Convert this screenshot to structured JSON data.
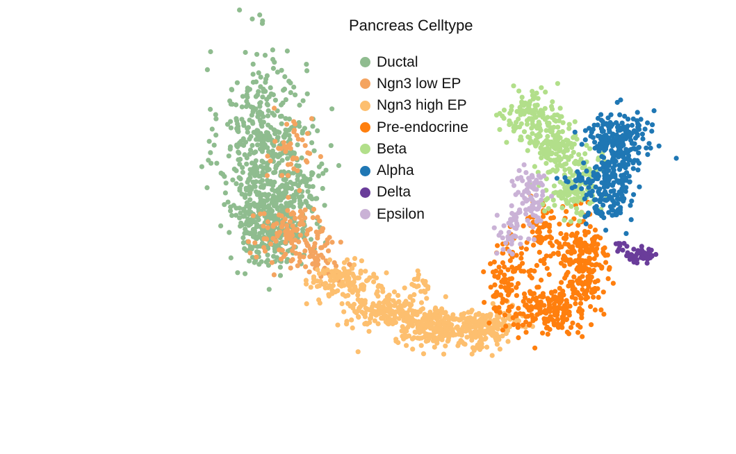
{
  "chart_data": {
    "type": "scatter",
    "title": "Pancreas Celltype",
    "xlabel": "",
    "ylabel": "",
    "axes_visible": false,
    "grid": false,
    "legend_placement": "top-center",
    "xlim": [
      0,
      100
    ],
    "ylim": [
      0,
      100
    ],
    "series": [
      {
        "name": "Ductal",
        "color": "#8fbc8f",
        "clusters": [
          {
            "cx": 26.5,
            "cy": 72.0,
            "sx": 3.6,
            "sy": 13.0,
            "n": 420
          },
          {
            "cx": 28.2,
            "cy": 51.0,
            "sx": 3.0,
            "sy": 5.2,
            "n": 300
          },
          {
            "cx": 33.0,
            "cy": 65.0,
            "sx": 2.2,
            "sy": 7.0,
            "n": 90
          }
        ]
      },
      {
        "name": "Ngn3 low EP",
        "color": "#f4a460",
        "clusters": [
          {
            "cx": 31.5,
            "cy": 49.0,
            "sx": 3.2,
            "sy": 4.0,
            "n": 110
          },
          {
            "cx": 31.0,
            "cy": 70.0,
            "sx": 2.0,
            "sy": 5.0,
            "n": 40
          },
          {
            "cx": 36.0,
            "cy": 42.0,
            "sx": 1.8,
            "sy": 2.5,
            "n": 50
          }
        ]
      },
      {
        "name": "Ngn3 high EP",
        "color": "#fdbf6f",
        "clusters": [
          {
            "cx": 40.0,
            "cy": 36.0,
            "sx": 2.8,
            "sy": 2.6,
            "n": 120
          },
          {
            "cx": 47.0,
            "cy": 28.5,
            "sx": 3.2,
            "sy": 2.4,
            "n": 170
          },
          {
            "cx": 55.0,
            "cy": 24.0,
            "sx": 3.2,
            "sy": 2.4,
            "n": 200
          },
          {
            "cx": 62.5,
            "cy": 23.0,
            "sx": 3.0,
            "sy": 2.6,
            "n": 170
          },
          {
            "cx": 66.5,
            "cy": 26.0,
            "sx": 1.5,
            "sy": 2.0,
            "n": 40
          },
          {
            "cx": 53.0,
            "cy": 35.0,
            "sx": 0.9,
            "sy": 1.5,
            "n": 18
          }
        ]
      },
      {
        "name": "Pre-endocrine",
        "color": "#ff7f0e",
        "clusters": [
          {
            "cx": 80.0,
            "cy": 40.0,
            "sx": 2.2,
            "sy": 8.0,
            "n": 220
          },
          {
            "cx": 73.5,
            "cy": 28.0,
            "sx": 3.0,
            "sy": 3.0,
            "n": 170
          },
          {
            "cx": 67.0,
            "cy": 36.5,
            "sx": 1.8,
            "sy": 5.0,
            "n": 80
          },
          {
            "cx": 73.5,
            "cy": 48.0,
            "sx": 2.2,
            "sy": 5.0,
            "n": 80
          }
        ]
      },
      {
        "name": "Beta",
        "color": "#b2df8a",
        "clusters": [
          {
            "cx": 71.5,
            "cy": 80.0,
            "sx": 2.3,
            "sy": 3.2,
            "n": 120
          },
          {
            "cx": 75.5,
            "cy": 72.5,
            "sx": 2.2,
            "sy": 3.0,
            "n": 120
          },
          {
            "cx": 78.5,
            "cy": 61.5,
            "sx": 2.2,
            "sy": 4.2,
            "n": 160
          }
        ]
      },
      {
        "name": "Alpha",
        "color": "#1f77b4",
        "clusters": [
          {
            "cx": 86.0,
            "cy": 74.0,
            "sx": 2.6,
            "sy": 3.8,
            "n": 200
          },
          {
            "cx": 84.5,
            "cy": 61.0,
            "sx": 2.0,
            "sy": 5.2,
            "n": 160
          },
          {
            "cx": 80.0,
            "cy": 63.0,
            "sx": 2.0,
            "sy": 1.5,
            "n": 25
          }
        ]
      },
      {
        "name": "Delta",
        "color": "#6a3d9a",
        "clusters": [
          {
            "cx": 89.5,
            "cy": 43.0,
            "sx": 1.4,
            "sy": 1.0,
            "n": 45
          },
          {
            "cx": 86.5,
            "cy": 45.5,
            "sx": 0.7,
            "sy": 0.8,
            "n": 8
          }
        ]
      },
      {
        "name": "Epsilon",
        "color": "#cab2d6",
        "clusters": [
          {
            "cx": 70.5,
            "cy": 57.5,
            "sx": 1.5,
            "sy": 4.2,
            "n": 70
          },
          {
            "cx": 67.5,
            "cy": 48.0,
            "sx": 0.9,
            "sy": 2.8,
            "n": 25
          },
          {
            "cx": 72.5,
            "cy": 62.0,
            "sx": 1.1,
            "sy": 1.5,
            "n": 20
          }
        ]
      }
    ]
  }
}
